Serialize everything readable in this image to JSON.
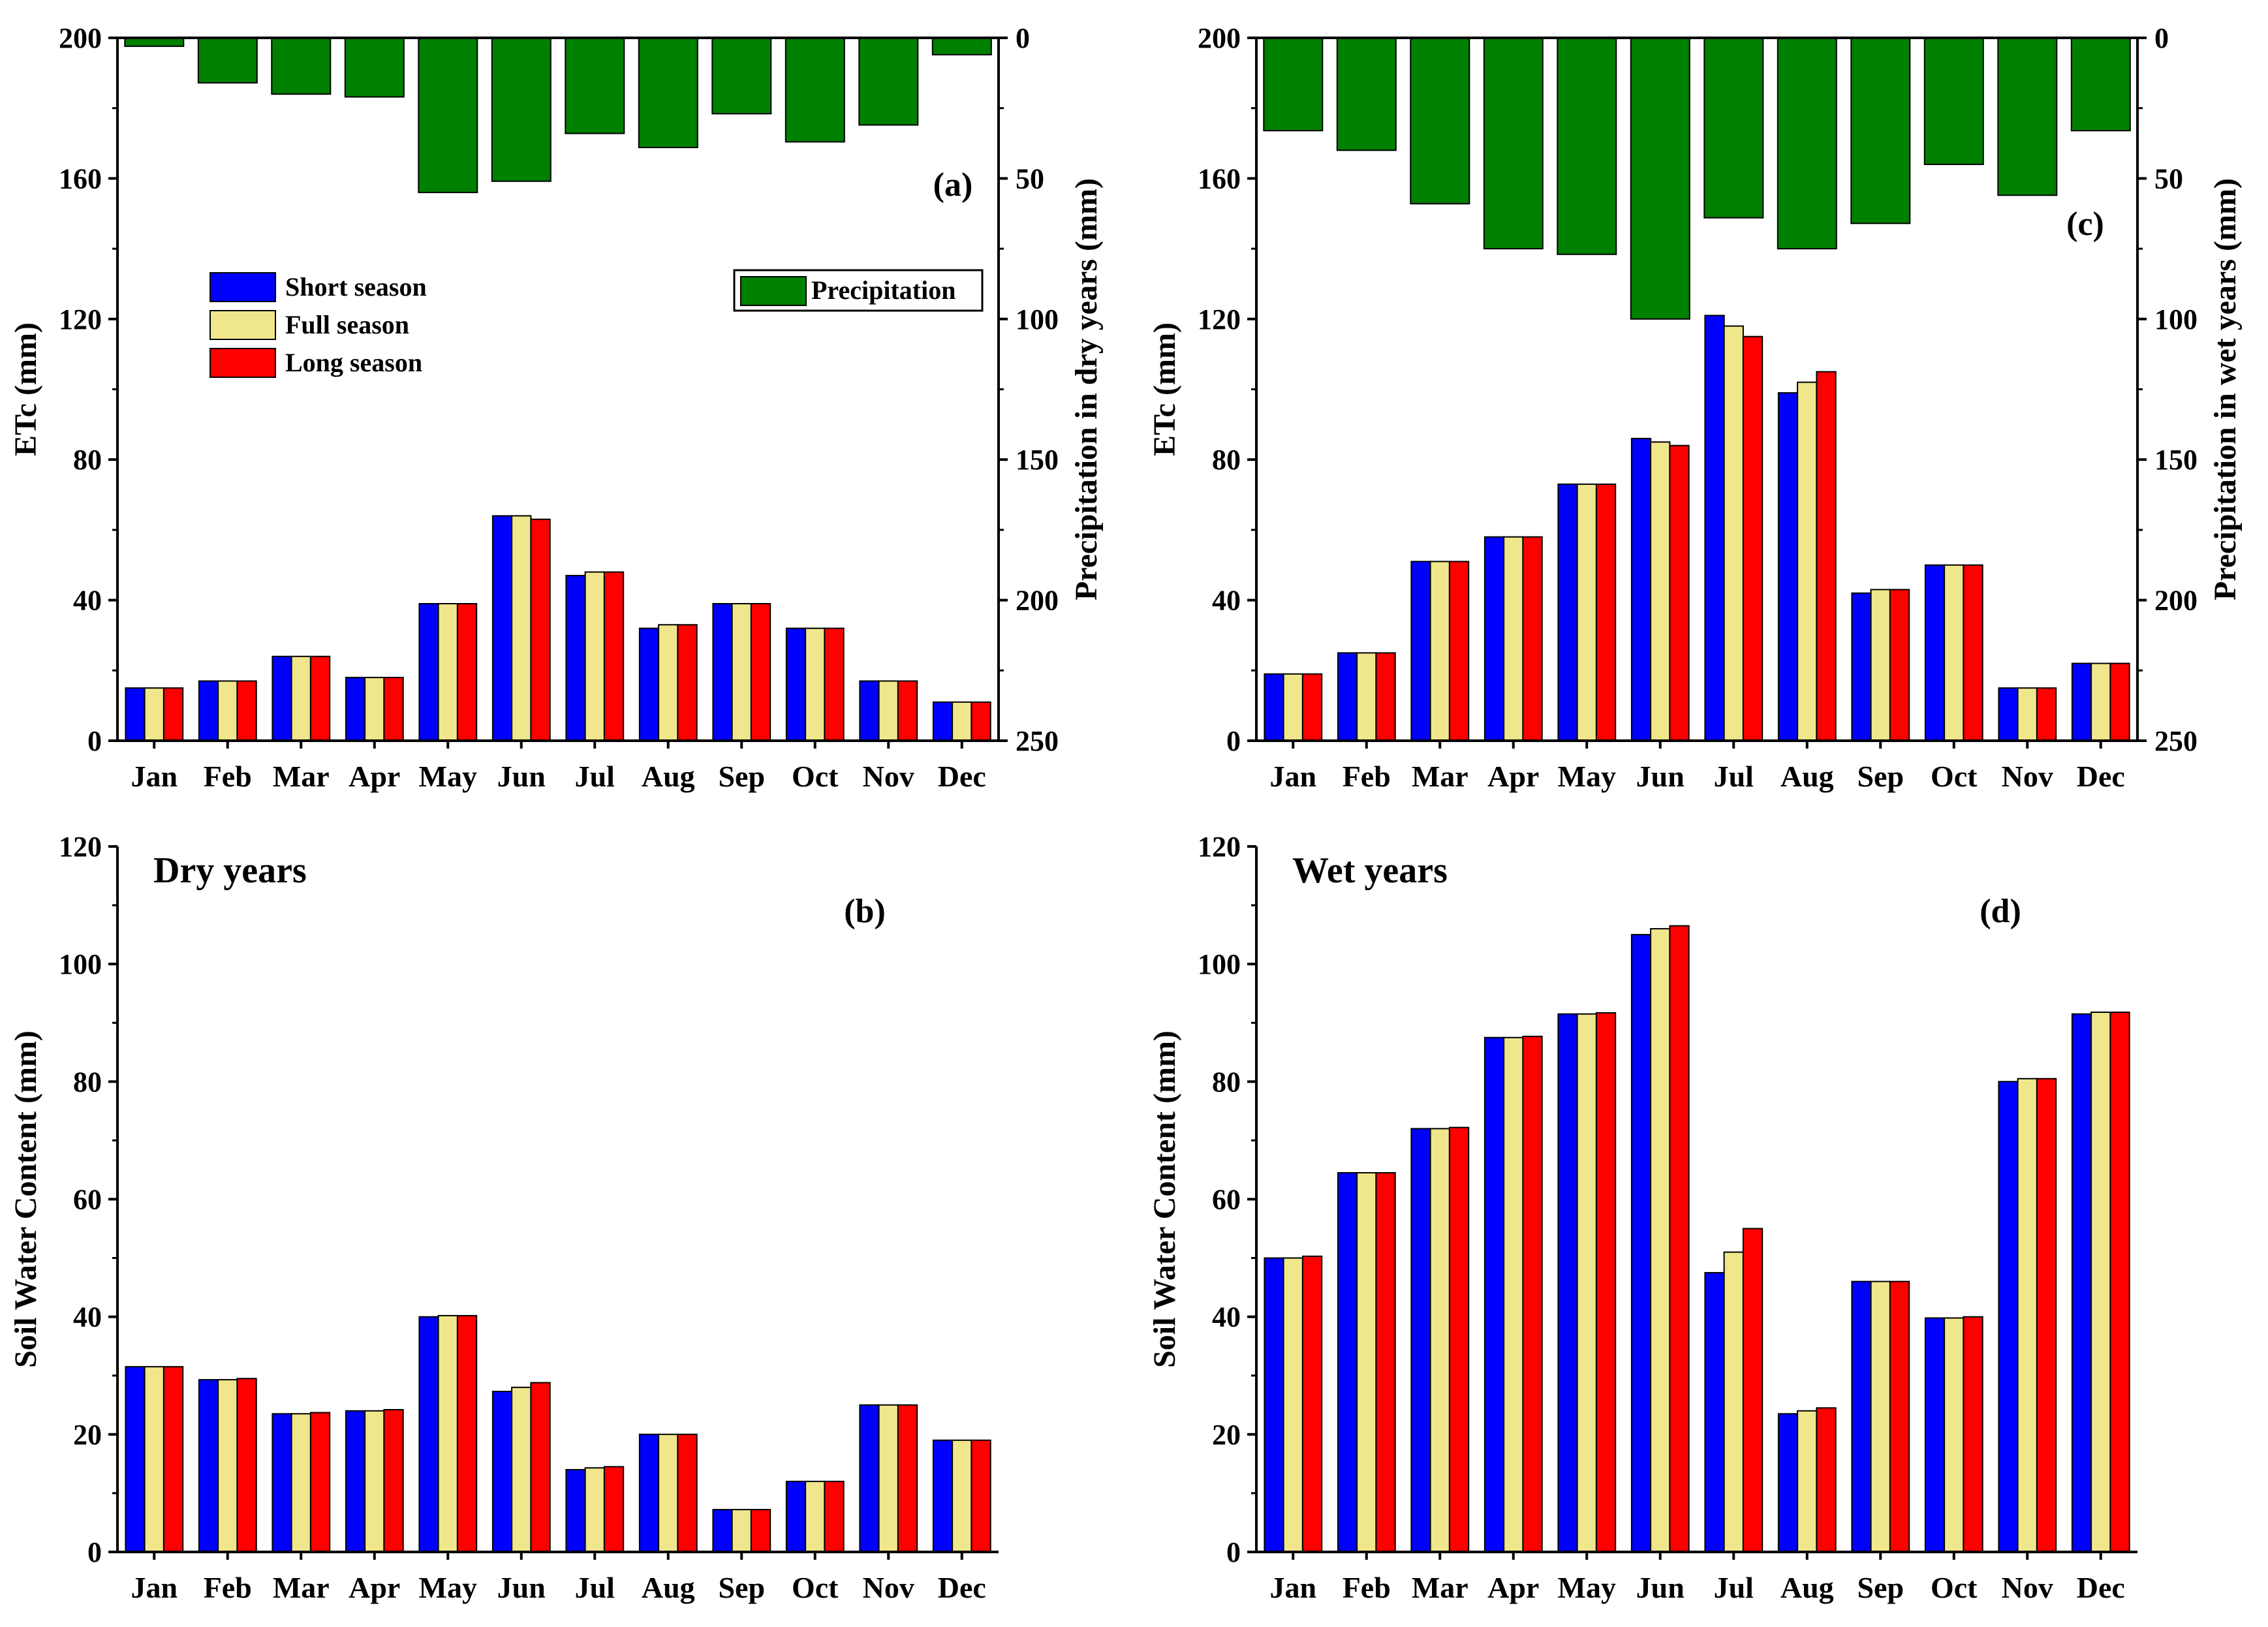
{
  "colors": {
    "short": "#0000ff",
    "full": "#f0e68c",
    "long": "#ff0000",
    "precip": "#008000",
    "axis": "#000000",
    "bar_edge": "#000000"
  },
  "chart_data": [
    {
      "id": "a",
      "type": "bar",
      "panel_label": "(a)",
      "title": "",
      "categories": [
        "Jan",
        "Feb",
        "Mar",
        "Apr",
        "May",
        "Jun",
        "Jul",
        "Aug",
        "Sep",
        "Oct",
        "Nov",
        "Dec"
      ],
      "ylabel": "ETc (mm)",
      "ylim": [
        0,
        200
      ],
      "yticks": [
        0,
        40,
        80,
        120,
        160,
        200
      ],
      "series": [
        {
          "key": "short",
          "name": "Short season",
          "values": [
            15,
            17,
            24,
            18,
            39,
            64,
            47,
            32,
            39,
            32,
            17,
            11
          ]
        },
        {
          "key": "full",
          "name": "Full season",
          "values": [
            15,
            17,
            24,
            18,
            39,
            64,
            48,
            33,
            39,
            32,
            17,
            11
          ]
        },
        {
          "key": "long",
          "name": "Long season",
          "values": [
            15,
            17,
            24,
            18,
            39,
            63,
            48,
            33,
            39,
            32,
            17,
            11
          ]
        }
      ],
      "legend": {
        "position": "upper-left",
        "entries": [
          "Short season",
          "Full season",
          "Long season"
        ]
      },
      "secondary": {
        "name": "Precipitation",
        "ylabel": "Precipitation in dry years (mm)",
        "ylim": [
          0,
          250
        ],
        "inverted": true,
        "yticks": [
          0,
          50,
          100,
          150,
          200,
          250
        ],
        "values": [
          3,
          16,
          20,
          21,
          55,
          51,
          34,
          39,
          27,
          37,
          31,
          6
        ],
        "legend": {
          "position": "upper-right",
          "label": "Precipitation"
        }
      }
    },
    {
      "id": "b",
      "type": "bar",
      "panel_label": "(b)",
      "title": "Dry years",
      "categories": [
        "Jan",
        "Feb",
        "Mar",
        "Apr",
        "May",
        "Jun",
        "Jul",
        "Aug",
        "Sep",
        "Oct",
        "Nov",
        "Dec"
      ],
      "ylabel": "Soil Water Content (mm)",
      "ylim": [
        0,
        120
      ],
      "yticks": [
        0,
        20,
        40,
        60,
        80,
        100,
        120
      ],
      "series": [
        {
          "key": "short",
          "name": "Short season",
          "values": [
            31.5,
            29.3,
            23.5,
            24.0,
            40.0,
            27.3,
            14.0,
            20.0,
            7.2,
            12.0,
            25.0,
            19.0
          ]
        },
        {
          "key": "full",
          "name": "Full season",
          "values": [
            31.5,
            29.3,
            23.5,
            24.0,
            40.2,
            28.0,
            14.3,
            20.0,
            7.2,
            12.0,
            25.0,
            19.0
          ]
        },
        {
          "key": "long",
          "name": "Long season",
          "values": [
            31.5,
            29.5,
            23.7,
            24.2,
            40.2,
            28.8,
            14.5,
            20.0,
            7.2,
            12.0,
            25.0,
            19.0
          ]
        }
      ]
    },
    {
      "id": "c",
      "type": "bar",
      "panel_label": "(c)",
      "title": "",
      "categories": [
        "Jan",
        "Feb",
        "Mar",
        "Apr",
        "May",
        "Jun",
        "Jul",
        "Aug",
        "Sep",
        "Oct",
        "Nov",
        "Dec"
      ],
      "ylabel": "ETc (mm)",
      "ylim": [
        0,
        200
      ],
      "yticks": [
        0,
        40,
        80,
        120,
        160,
        200
      ],
      "series": [
        {
          "key": "short",
          "name": "Short season",
          "values": [
            19,
            25,
            51,
            58,
            73,
            86,
            121,
            99,
            42,
            50,
            15,
            22
          ]
        },
        {
          "key": "full",
          "name": "Full season",
          "values": [
            19,
            25,
            51,
            58,
            73,
            85,
            118,
            102,
            43,
            50,
            15,
            22
          ]
        },
        {
          "key": "long",
          "name": "Long season",
          "values": [
            19,
            25,
            51,
            58,
            73,
            84,
            115,
            105,
            43,
            50,
            15,
            22
          ]
        }
      ],
      "secondary": {
        "name": "Precipitation",
        "ylabel": "Precipitation in wet years (mm)",
        "ylim": [
          0,
          250
        ],
        "inverted": true,
        "yticks": [
          0,
          50,
          100,
          150,
          200,
          250
        ],
        "values": [
          33,
          40,
          59,
          75,
          77,
          100,
          64,
          75,
          66,
          45,
          56,
          33
        ]
      }
    },
    {
      "id": "d",
      "type": "bar",
      "panel_label": "(d)",
      "title": "Wet years",
      "categories": [
        "Jan",
        "Feb",
        "Mar",
        "Apr",
        "May",
        "Jun",
        "Jul",
        "Aug",
        "Sep",
        "Oct",
        "Nov",
        "Dec"
      ],
      "ylabel": "Soil Water Content (mm)",
      "ylim": [
        0,
        120
      ],
      "yticks": [
        0,
        20,
        40,
        60,
        80,
        100,
        120
      ],
      "series": [
        {
          "key": "short",
          "name": "Short season",
          "values": [
            50,
            64.5,
            72,
            87.5,
            91.5,
            105,
            47.5,
            23.5,
            46,
            39.8,
            80,
            91.5
          ]
        },
        {
          "key": "full",
          "name": "Full season",
          "values": [
            50,
            64.5,
            72,
            87.5,
            91.5,
            106,
            51,
            24,
            46,
            39.8,
            80.5,
            91.8
          ]
        },
        {
          "key": "long",
          "name": "Long season",
          "values": [
            50.3,
            64.5,
            72.2,
            87.7,
            91.7,
            106.5,
            55,
            24.5,
            46,
            40,
            80.5,
            91.8
          ]
        }
      ]
    }
  ]
}
